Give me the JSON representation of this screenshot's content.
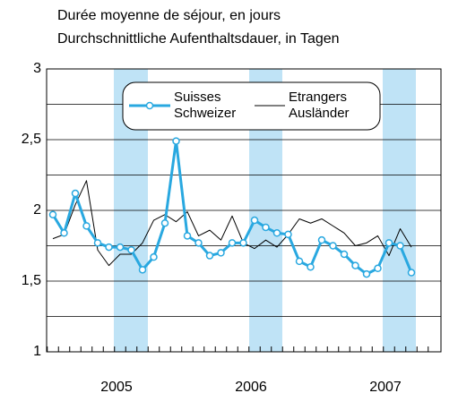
{
  "chart_data": {
    "type": "line",
    "title": "Durée moyenne de séjour, en jours",
    "subtitle": "Durchschnittliche Aufenthaltsdauer, in Tagen",
    "categories": [
      null,
      null,
      null,
      null,
      null,
      null,
      "2005",
      null,
      null,
      null,
      null,
      null,
      null,
      null,
      null,
      null,
      null,
      null,
      "2006",
      null,
      null,
      null,
      null,
      null,
      null,
      null,
      null,
      null,
      null,
      null,
      "2007",
      null,
      null
    ],
    "series": [
      {
        "name": "Suisses\nSchweizer",
        "color": "#29a8e0",
        "marker": true,
        "values": [
          1.97,
          1.84,
          2.12,
          1.89,
          1.77,
          1.74,
          1.74,
          1.72,
          1.58,
          1.67,
          1.91,
          2.49,
          1.82,
          1.77,
          1.68,
          1.7,
          1.77,
          1.77,
          1.93,
          1.88,
          1.84,
          1.83,
          1.64,
          1.6,
          1.79,
          1.75,
          1.69,
          1.61,
          1.55,
          1.59,
          1.77,
          1.75,
          1.56
        ]
      },
      {
        "name": "Etrangers\nAusländer",
        "color": "#000000",
        "marker": false,
        "values": [
          1.8,
          1.83,
          2.04,
          2.21,
          1.72,
          1.61,
          1.69,
          1.69,
          1.77,
          1.93,
          1.97,
          1.92,
          1.99,
          1.82,
          1.86,
          1.79,
          1.96,
          1.77,
          1.73,
          1.79,
          1.74,
          1.83,
          1.94,
          1.91,
          1.94,
          1.89,
          1.84,
          1.75,
          1.77,
          1.82,
          1.68,
          1.87,
          1.74
        ]
      }
    ],
    "ylim": [
      1,
      3
    ],
    "yticks": [
      1,
      {
        "value": 1.5,
        "label": "1,5"
      },
      2,
      {
        "value": 2.5,
        "label": "2,5"
      },
      3
    ],
    "minor_yticks": [
      1.25,
      1.75,
      2.25,
      2.75
    ],
    "grid": true
  }
}
